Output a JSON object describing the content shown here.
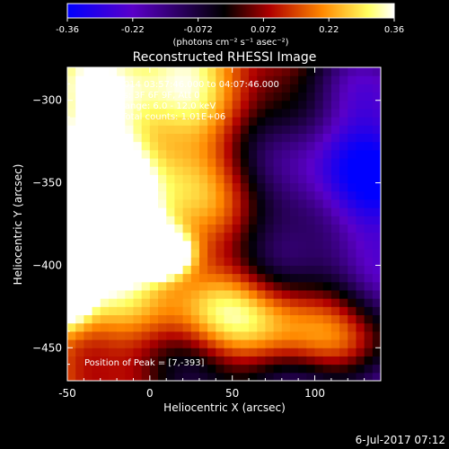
{
  "chart_data": {
    "type": "heatmap",
    "title": "Reconstructed RHESSI Image",
    "xlabel": "Heliocentric X (arcsec)",
    "ylabel": "Heliocentric Y (arcsec)",
    "xlim": [
      -50,
      140
    ],
    "ylim": [
      -470,
      -280
    ],
    "xticks": [
      -50,
      0,
      50,
      100
    ],
    "yticks": [
      -300,
      -350,
      -400,
      -450
    ],
    "colorbar": {
      "min": -0.36,
      "max": 0.36,
      "ticks": [
        "-0.36",
        "-0.22",
        "-0.072",
        "0.072",
        "0.22",
        "0.36"
      ],
      "label": "(photons cm⁻² s⁻¹ asec⁻²)"
    },
    "info_lines": [
      "24-Oct-2014 03:57:46.000 to 04:07:46.000",
      "Detectors: 3F 6F 9F, Att 0",
      "Energy Range: 6.0 - 12.0 keV",
      "Clean    Total counts: 1.01E+06"
    ],
    "peak_label": "Position of Peak = [7,-393]",
    "peak": {
      "x": 7,
      "y": -393
    },
    "colormap_stops": [
      "#0000ff",
      "#5a00c8",
      "#000000",
      "#b00000",
      "#ff8800",
      "#ffff60",
      "#ffffff"
    ]
  },
  "footer": {
    "date": "6-Jul-2017 07:12"
  }
}
